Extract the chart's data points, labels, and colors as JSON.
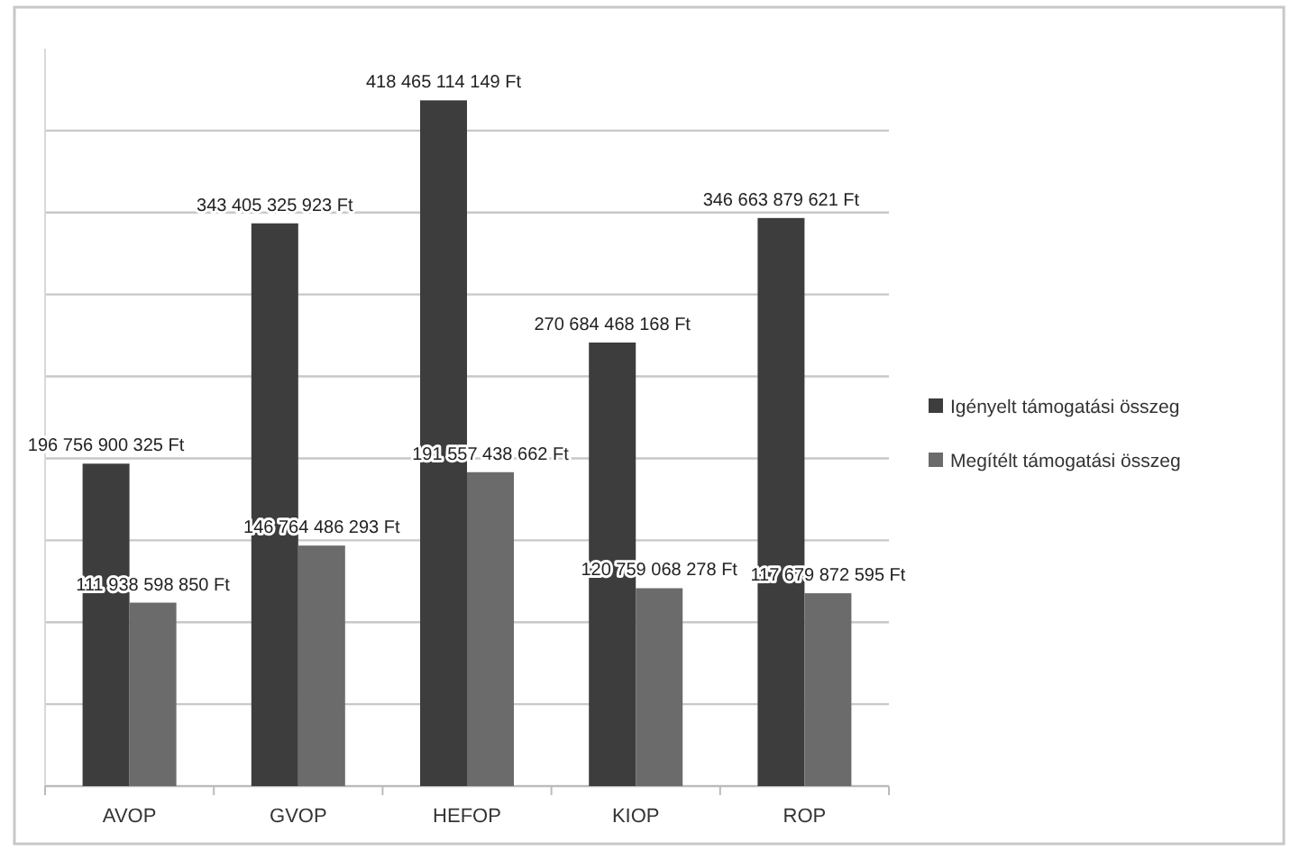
{
  "chart_data": {
    "type": "bar",
    "categories": [
      "AVOP",
      "GVOP",
      "HEFOP",
      "KIOP",
      "ROP"
    ],
    "series": [
      {
        "name": "Igényelt támogatási összeg",
        "color": "#3d3d3d",
        "values": [
          196756900325,
          343405325923,
          418465114149,
          270684468168,
          346663879621
        ],
        "value_labels": [
          "196 756 900 325 Ft",
          "343 405 325 923 Ft",
          "418 465 114 149 Ft",
          "270 684 468 168 Ft",
          "346 663 879 621 Ft"
        ]
      },
      {
        "name": "Megítélt támogatási összeg",
        "color": "#6b6b6b",
        "values": [
          111938598850,
          146764486293,
          191557438662,
          120759068278,
          117679872595
        ],
        "value_labels": [
          "111 938 598 850 Ft",
          "146 764 486 293 Ft",
          "191 557 438 662 Ft",
          "120 759 068 278 Ft",
          "117 679 872 595 Ft"
        ]
      }
    ],
    "ylim": [
      0,
      450000000000
    ],
    "yticks": [
      {
        "value": 0,
        "label": null
      },
      {
        "value": 50000000000,
        "label": null
      },
      {
        "value": 100000000000,
        "label": null
      },
      {
        "value": 150000000000,
        "label": null
      },
      {
        "value": 200000000000,
        "label": null
      },
      {
        "value": 250000000000,
        "label": null
      },
      {
        "value": 300000000000,
        "label": null
      },
      {
        "value": 350000000000,
        "label": null
      },
      {
        "value": 400000000000,
        "label": null
      }
    ],
    "tick_labels": "x",
    "grid": "y",
    "legend": "right"
  }
}
